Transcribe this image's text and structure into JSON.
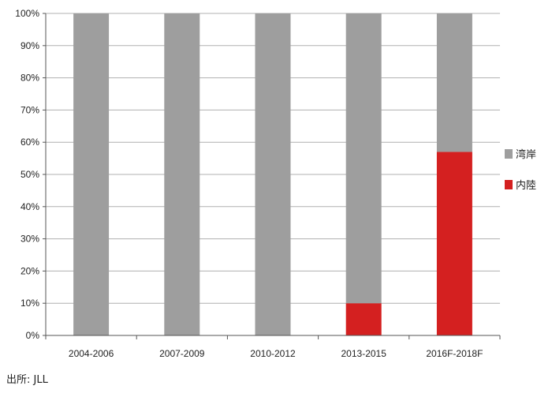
{
  "source_note": "出所: JLL",
  "chart_data": {
    "type": "bar",
    "stacked": true,
    "categories": [
      "2004-2006",
      "2007-2009",
      "2010-2012",
      "2013-2015",
      "2016F-2018F"
    ],
    "series": [
      {
        "name": "内陸",
        "color": "#d42020",
        "values": [
          0,
          0,
          0,
          10,
          57
        ]
      },
      {
        "name": "湾岸",
        "color": "#9e9e9e",
        "values": [
          100,
          100,
          100,
          90,
          43
        ]
      }
    ],
    "legend_order": [
      "湾岸",
      "内陸"
    ],
    "legend_position": "right",
    "ylim": [
      0,
      100
    ],
    "yticks": [
      "0%",
      "10%",
      "20%",
      "30%",
      "40%",
      "50%",
      "60%",
      "70%",
      "80%",
      "90%",
      "100%"
    ],
    "grid": true,
    "title": "",
    "xlabel": "",
    "ylabel": ""
  }
}
